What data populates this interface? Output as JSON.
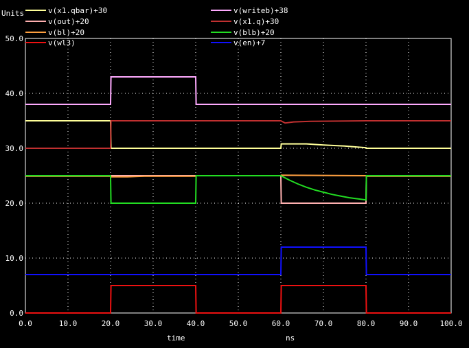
{
  "chart_data": {
    "type": "line",
    "units_label": "Units",
    "xlabel": "time",
    "xunit": "ns",
    "xlim": [
      0,
      100
    ],
    "ylim": [
      0,
      50
    ],
    "x_ticks": [
      "0.0",
      "10.0",
      "20.0",
      "30.0",
      "40.0",
      "50.0",
      "60.0",
      "70.0",
      "80.0",
      "90.0",
      "100.0"
    ],
    "y_ticks": [
      "0.0",
      "10.0",
      "20.0",
      "30.0",
      "40.0",
      "50.0"
    ],
    "grid": true,
    "legend_position": "top",
    "series": [
      {
        "name": "v(x1.qbar)+30",
        "color": "#ffff99",
        "points": [
          [
            0,
            35
          ],
          [
            20,
            35
          ],
          [
            20.1,
            30
          ],
          [
            60,
            30
          ],
          [
            60.1,
            30.8
          ],
          [
            66,
            30.8
          ],
          [
            70,
            30.6
          ],
          [
            75,
            30.4
          ],
          [
            80,
            30.1
          ],
          [
            80.1,
            30
          ],
          [
            100,
            30
          ]
        ]
      },
      {
        "name": "v(writeb)+38",
        "color": "#ffaaff",
        "points": [
          [
            0,
            38
          ],
          [
            20,
            38
          ],
          [
            20.1,
            43
          ],
          [
            40,
            43
          ],
          [
            40.1,
            38
          ],
          [
            100,
            38
          ]
        ]
      },
      {
        "name": "v(out)+20",
        "color": "#ffb0b0",
        "points": [
          [
            0,
            25
          ],
          [
            60,
            25
          ],
          [
            60.1,
            20
          ],
          [
            80,
            20
          ],
          [
            80.1,
            25
          ],
          [
            100,
            25
          ]
        ]
      },
      {
        "name": "v(x1.q)+30",
        "color": "#c03030",
        "points": [
          [
            0,
            30
          ],
          [
            20,
            30
          ],
          [
            20.1,
            35
          ],
          [
            60,
            35
          ],
          [
            61,
            34.6
          ],
          [
            63,
            34.8
          ],
          [
            67,
            34.9
          ],
          [
            80,
            35
          ],
          [
            100,
            35
          ]
        ]
      },
      {
        "name": "v(bl)+20",
        "color": "#ffa040",
        "points": [
          [
            0,
            24.9
          ],
          [
            20,
            24.9
          ],
          [
            20.1,
            24.8
          ],
          [
            24,
            24.8
          ],
          [
            28,
            24.9
          ],
          [
            32,
            24.9
          ],
          [
            40,
            24.9
          ],
          [
            40.1,
            25
          ],
          [
            60,
            25
          ],
          [
            60.1,
            25.1
          ],
          [
            80,
            25
          ],
          [
            80.1,
            24.9
          ],
          [
            100,
            24.9
          ]
        ]
      },
      {
        "name": "v(blb)+20",
        "color": "#22dd22",
        "points": [
          [
            0,
            25
          ],
          [
            20,
            25
          ],
          [
            20.1,
            20
          ],
          [
            40,
            20
          ],
          [
            40.1,
            25
          ],
          [
            60,
            25
          ],
          [
            62,
            24.2
          ],
          [
            64,
            23.5
          ],
          [
            66,
            22.9
          ],
          [
            68,
            22.4
          ],
          [
            70,
            22
          ],
          [
            72,
            21.6
          ],
          [
            74,
            21.3
          ],
          [
            76,
            21
          ],
          [
            78,
            20.8
          ],
          [
            80,
            20.6
          ],
          [
            80.1,
            25
          ],
          [
            100,
            25
          ]
        ]
      },
      {
        "name": "v(wl3)",
        "color": "#ee1111",
        "points": [
          [
            0,
            0
          ],
          [
            20,
            0
          ],
          [
            20.1,
            5
          ],
          [
            40,
            5
          ],
          [
            40.1,
            0
          ],
          [
            60,
            0
          ],
          [
            60.1,
            5
          ],
          [
            80,
            5
          ],
          [
            80.1,
            0
          ],
          [
            100,
            0
          ]
        ]
      },
      {
        "name": "v(en)+7",
        "color": "#1010ff",
        "points": [
          [
            0,
            7
          ],
          [
            60,
            7
          ],
          [
            60.1,
            12
          ],
          [
            80,
            12
          ],
          [
            80.1,
            7
          ],
          [
            100,
            7
          ]
        ]
      }
    ]
  }
}
